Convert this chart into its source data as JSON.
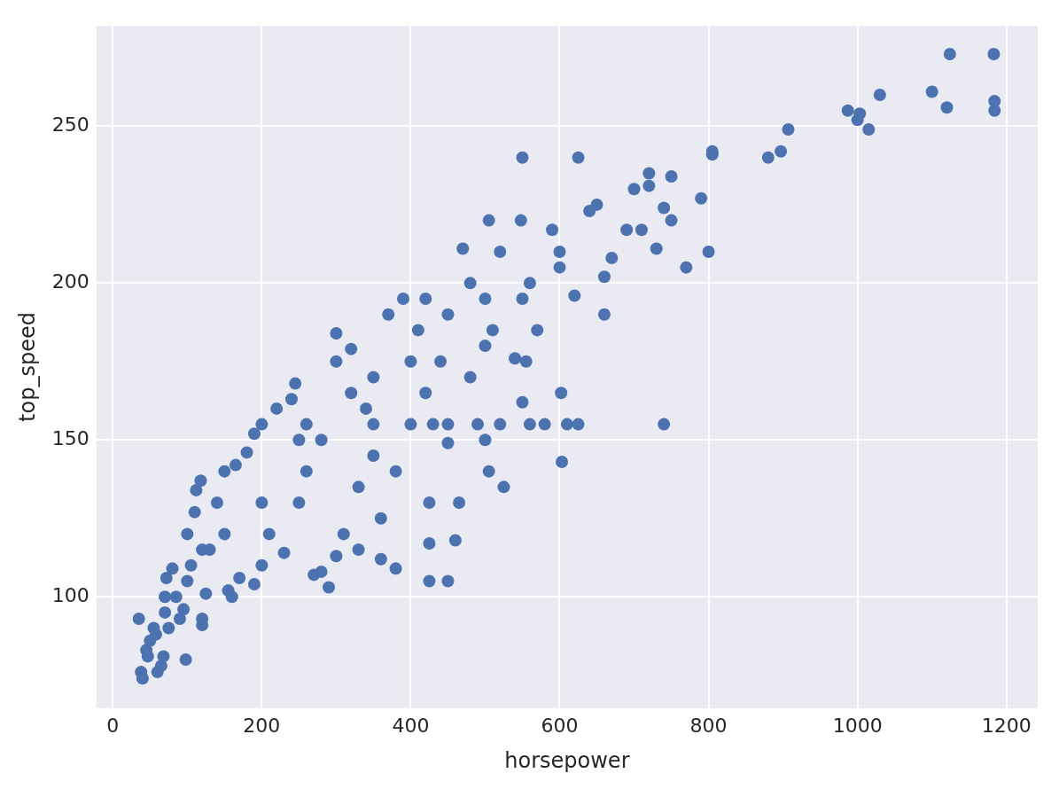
{
  "chart_data": {
    "type": "scatter",
    "xlabel": "horsepower",
    "ylabel": "top_speed",
    "xlim": [
      -22,
      1242
    ],
    "ylim": [
      64.5,
      282
    ],
    "xticks": [
      0,
      200,
      400,
      600,
      800,
      1000,
      1200
    ],
    "yticks": [
      100,
      150,
      200,
      250
    ],
    "grid": true,
    "marker": "circle",
    "legend": false,
    "series": [
      {
        "color": "#4c72b0",
        "x": [
          35,
          38,
          40,
          45,
          47,
          50,
          55,
          58,
          60,
          65,
          68,
          70,
          70,
          72,
          75,
          80,
          85,
          90,
          95,
          98,
          100,
          105,
          110,
          112,
          118,
          120,
          120,
          125,
          130,
          140,
          150,
          155,
          160,
          165,
          170,
          180,
          190,
          190,
          200,
          200,
          210,
          220,
          230,
          240,
          245,
          250,
          260,
          270,
          280,
          290,
          300,
          300,
          300,
          310,
          320,
          330,
          340,
          350,
          360,
          370,
          380,
          390,
          400,
          410,
          420,
          425,
          425,
          425,
          430,
          450,
          450,
          460,
          465,
          470,
          480,
          490,
          500,
          505,
          505,
          510,
          520,
          525,
          540,
          548,
          550,
          550,
          555,
          560,
          570,
          580,
          590,
          600,
          602,
          603,
          610,
          620,
          625,
          625,
          640,
          650,
          660,
          660,
          670,
          690,
          700,
          710,
          720,
          720,
          730,
          740,
          740,
          750,
          750,
          770,
          790,
          800,
          805,
          805,
          880,
          897,
          907,
          987,
          1000,
          1003,
          1015,
          1030,
          1100,
          1120,
          1124,
          1183,
          1184,
          1184,
          350,
          450,
          520,
          560,
          200,
          250,
          280,
          320,
          350,
          400,
          450,
          500,
          550,
          600,
          150,
          120,
          100,
          260,
          330,
          360,
          380,
          420,
          440,
          480,
          500
        ],
        "values": [
          93,
          76,
          74,
          83,
          81,
          86,
          90,
          88,
          76,
          78,
          81,
          95,
          100,
          106,
          90,
          109,
          100,
          93,
          96,
          80,
          120,
          110,
          127,
          134,
          137,
          91,
          93,
          101,
          115,
          130,
          140,
          102,
          100,
          142,
          106,
          146,
          104,
          152,
          155,
          110,
          120,
          160,
          114,
          163,
          168,
          150,
          140,
          107,
          108,
          103,
          184,
          175,
          113,
          120,
          179,
          115,
          160,
          145,
          112,
          190,
          109,
          195,
          155,
          185,
          195,
          105,
          117,
          130,
          155,
          105,
          149,
          118,
          130,
          211,
          200,
          155,
          150,
          140,
          220,
          185,
          210,
          135,
          176,
          220,
          240,
          162,
          175,
          200,
          185,
          155,
          217,
          210,
          165,
          143,
          155,
          196,
          155,
          240,
          223,
          225,
          190,
          202,
          208,
          217,
          230,
          217,
          235,
          231,
          211,
          224,
          155,
          234,
          220,
          205,
          227,
          210,
          241,
          242,
          240,
          242,
          249,
          255,
          252,
          254,
          249,
          260,
          261,
          256,
          273,
          273,
          258,
          255,
          155,
          155,
          155,
          155,
          130,
          130,
          150,
          165,
          170,
          175,
          190,
          195,
          195,
          205,
          120,
          115,
          105,
          155,
          135,
          125,
          140,
          165,
          175,
          170,
          180
        ]
      }
    ]
  }
}
